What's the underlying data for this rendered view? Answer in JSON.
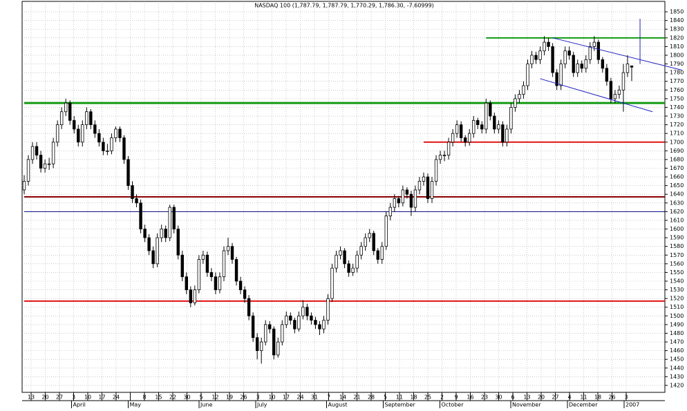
{
  "chart_data": {
    "type": "candlestick",
    "title": "NASDAQ 100 (1,787.79, 1,787.79, 1,770.29, 1,786.30, -7.60999)",
    "ylim": [
      1412,
      1862
    ],
    "yticks": [
      1420,
      1430,
      1440,
      1450,
      1460,
      1470,
      1480,
      1490,
      1500,
      1510,
      1520,
      1530,
      1540,
      1550,
      1560,
      1570,
      1580,
      1590,
      1600,
      1610,
      1620,
      1630,
      1640,
      1650,
      1660,
      1670,
      1680,
      1690,
      1700,
      1710,
      1720,
      1730,
      1740,
      1750,
      1760,
      1770,
      1780,
      1790,
      1800,
      1810,
      1820,
      1830,
      1840,
      1850
    ],
    "grid": true,
    "week_labels": [
      "13",
      "20",
      "27",
      "3",
      "10",
      "17",
      "24",
      null,
      "8",
      "15",
      "22",
      "30",
      "5",
      "12",
      "19",
      "26",
      "3",
      "10",
      "17",
      "24",
      "31",
      "7",
      "14",
      "21",
      "28",
      "5",
      "11",
      "18",
      "25",
      "2",
      "9",
      "16",
      "23",
      "30",
      "6",
      "13",
      "20",
      "27",
      "4",
      "11",
      "18",
      "26",
      "3"
    ],
    "month_labels": [
      null,
      null,
      null,
      "April",
      null,
      null,
      null,
      "May",
      null,
      null,
      null,
      null,
      "June",
      null,
      null,
      null,
      "July",
      null,
      null,
      null,
      null,
      "August",
      null,
      null,
      null,
      "September",
      null,
      null,
      null,
      "October",
      null,
      null,
      null,
      null,
      "November",
      null,
      null,
      null,
      "December",
      null,
      null,
      null,
      "2007"
    ],
    "ohlc": [
      [
        1645,
        1662,
        1640,
        1655
      ],
      [
        1655,
        1685,
        1650,
        1680
      ],
      [
        1680,
        1700,
        1675,
        1695
      ],
      [
        1695,
        1700,
        1680,
        1685
      ],
      [
        1685,
        1690,
        1665,
        1670
      ],
      [
        1670,
        1680,
        1665,
        1675
      ],
      [
        1675,
        1682,
        1668,
        1675
      ],
      [
        1675,
        1705,
        1670,
        1700
      ],
      [
        1700,
        1725,
        1695,
        1720
      ],
      [
        1720,
        1740,
        1715,
        1735
      ],
      [
        1735,
        1750,
        1730,
        1745
      ],
      [
        1745,
        1748,
        1720,
        1725
      ],
      [
        1725,
        1730,
        1710,
        1715
      ],
      [
        1715,
        1720,
        1695,
        1700
      ],
      [
        1700,
        1725,
        1695,
        1720
      ],
      [
        1720,
        1740,
        1715,
        1735
      ],
      [
        1735,
        1738,
        1715,
        1720
      ],
      [
        1720,
        1725,
        1705,
        1710
      ],
      [
        1710,
        1715,
        1695,
        1700
      ],
      [
        1700,
        1705,
        1685,
        1690
      ],
      [
        1690,
        1698,
        1685,
        1690
      ],
      [
        1690,
        1710,
        1686,
        1705
      ],
      [
        1705,
        1718,
        1700,
        1715
      ],
      [
        1715,
        1718,
        1700,
        1705
      ],
      [
        1705,
        1708,
        1675,
        1680
      ],
      [
        1680,
        1684,
        1645,
        1650
      ],
      [
        1650,
        1655,
        1630,
        1635
      ],
      [
        1635,
        1640,
        1625,
        1630
      ],
      [
        1630,
        1634,
        1595,
        1600
      ],
      [
        1600,
        1605,
        1585,
        1590
      ],
      [
        1590,
        1594,
        1570,
        1575
      ],
      [
        1575,
        1580,
        1555,
        1560
      ],
      [
        1560,
        1595,
        1556,
        1590
      ],
      [
        1590,
        1605,
        1585,
        1600
      ],
      [
        1600,
        1604,
        1585,
        1590
      ],
      [
        1590,
        1628,
        1586,
        1625
      ],
      [
        1625,
        1628,
        1595,
        1600
      ],
      [
        1600,
        1604,
        1565,
        1570
      ],
      [
        1570,
        1575,
        1540,
        1545
      ],
      [
        1545,
        1550,
        1525,
        1530
      ],
      [
        1530,
        1534,
        1510,
        1515
      ],
      [
        1515,
        1535,
        1512,
        1530
      ],
      [
        1530,
        1570,
        1526,
        1565
      ],
      [
        1565,
        1575,
        1560,
        1570
      ],
      [
        1570,
        1574,
        1545,
        1550
      ],
      [
        1550,
        1555,
        1540,
        1545
      ],
      [
        1545,
        1550,
        1525,
        1530
      ],
      [
        1530,
        1550,
        1526,
        1545
      ],
      [
        1545,
        1580,
        1540,
        1575
      ],
      [
        1575,
        1590,
        1570,
        1580
      ],
      [
        1580,
        1584,
        1560,
        1565
      ],
      [
        1565,
        1568,
        1535,
        1540
      ],
      [
        1540,
        1545,
        1525,
        1530
      ],
      [
        1530,
        1534,
        1515,
        1520
      ],
      [
        1520,
        1524,
        1495,
        1500
      ],
      [
        1500,
        1504,
        1470,
        1475
      ],
      [
        1475,
        1480,
        1450,
        1460
      ],
      [
        1460,
        1475,
        1445,
        1470
      ],
      [
        1470,
        1495,
        1466,
        1490
      ],
      [
        1490,
        1494,
        1480,
        1485
      ],
      [
        1485,
        1488,
        1450,
        1455
      ],
      [
        1455,
        1475,
        1452,
        1470
      ],
      [
        1470,
        1495,
        1466,
        1490
      ],
      [
        1490,
        1505,
        1486,
        1500
      ],
      [
        1500,
        1504,
        1490,
        1495
      ],
      [
        1495,
        1498,
        1480,
        1485
      ],
      [
        1485,
        1505,
        1482,
        1500
      ],
      [
        1500,
        1518,
        1496,
        1510
      ],
      [
        1510,
        1514,
        1495,
        1500
      ],
      [
        1500,
        1504,
        1490,
        1495
      ],
      [
        1495,
        1499,
        1485,
        1490
      ],
      [
        1490,
        1494,
        1478,
        1485
      ],
      [
        1485,
        1500,
        1480,
        1495
      ],
      [
        1495,
        1525,
        1490,
        1520
      ],
      [
        1520,
        1560,
        1516,
        1555
      ],
      [
        1555,
        1575,
        1550,
        1570
      ],
      [
        1570,
        1580,
        1565,
        1575
      ],
      [
        1575,
        1578,
        1555,
        1560
      ],
      [
        1560,
        1564,
        1545,
        1550
      ],
      [
        1550,
        1560,
        1546,
        1555
      ],
      [
        1555,
        1575,
        1550,
        1570
      ],
      [
        1570,
        1585,
        1565,
        1580
      ],
      [
        1580,
        1595,
        1575,
        1590
      ],
      [
        1590,
        1600,
        1585,
        1595
      ],
      [
        1595,
        1598,
        1570,
        1575
      ],
      [
        1575,
        1578,
        1560,
        1565
      ],
      [
        1565,
        1585,
        1560,
        1580
      ],
      [
        1580,
        1620,
        1576,
        1615
      ],
      [
        1615,
        1630,
        1610,
        1625
      ],
      [
        1625,
        1640,
        1620,
        1635
      ],
      [
        1635,
        1638,
        1625,
        1630
      ],
      [
        1630,
        1650,
        1626,
        1645
      ],
      [
        1645,
        1648,
        1635,
        1640
      ],
      [
        1640,
        1644,
        1615,
        1625
      ],
      [
        1625,
        1650,
        1620,
        1645
      ],
      [
        1645,
        1660,
        1640,
        1655
      ],
      [
        1655,
        1665,
        1650,
        1660
      ],
      [
        1660,
        1664,
        1630,
        1635
      ],
      [
        1635,
        1660,
        1630,
        1655
      ],
      [
        1655,
        1685,
        1650,
        1680
      ],
      [
        1680,
        1690,
        1675,
        1685
      ],
      [
        1685,
        1690,
        1678,
        1685
      ],
      [
        1685,
        1705,
        1680,
        1700
      ],
      [
        1700,
        1715,
        1695,
        1710
      ],
      [
        1710,
        1725,
        1705,
        1720
      ],
      [
        1720,
        1724,
        1700,
        1705
      ],
      [
        1705,
        1708,
        1695,
        1700
      ],
      [
        1700,
        1715,
        1696,
        1710
      ],
      [
        1710,
        1730,
        1705,
        1725
      ],
      [
        1725,
        1728,
        1715,
        1720
      ],
      [
        1720,
        1724,
        1710,
        1715
      ],
      [
        1715,
        1750,
        1710,
        1745
      ],
      [
        1745,
        1748,
        1725,
        1730
      ],
      [
        1730,
        1734,
        1710,
        1715
      ],
      [
        1715,
        1725,
        1710,
        1720
      ],
      [
        1720,
        1724,
        1695,
        1700
      ],
      [
        1700,
        1720,
        1695,
        1715
      ],
      [
        1715,
        1745,
        1710,
        1740
      ],
      [
        1740,
        1755,
        1735,
        1750
      ],
      [
        1750,
        1760,
        1745,
        1755
      ],
      [
        1755,
        1770,
        1750,
        1765
      ],
      [
        1765,
        1795,
        1760,
        1790
      ],
      [
        1790,
        1805,
        1785,
        1800
      ],
      [
        1800,
        1804,
        1790,
        1795
      ],
      [
        1795,
        1810,
        1790,
        1805
      ],
      [
        1805,
        1822,
        1800,
        1815
      ],
      [
        1815,
        1820,
        1805,
        1810
      ],
      [
        1810,
        1814,
        1775,
        1780
      ],
      [
        1780,
        1784,
        1760,
        1765
      ],
      [
        1765,
        1795,
        1760,
        1790
      ],
      [
        1790,
        1810,
        1785,
        1805
      ],
      [
        1805,
        1810,
        1795,
        1800
      ],
      [
        1800,
        1804,
        1775,
        1780
      ],
      [
        1780,
        1795,
        1775,
        1790
      ],
      [
        1790,
        1794,
        1780,
        1785
      ],
      [
        1785,
        1800,
        1780,
        1795
      ],
      [
        1795,
        1815,
        1790,
        1810
      ],
      [
        1810,
        1822,
        1805,
        1815
      ],
      [
        1815,
        1818,
        1790,
        1795
      ],
      [
        1795,
        1798,
        1780,
        1785
      ],
      [
        1785,
        1790,
        1765,
        1770
      ],
      [
        1770,
        1774,
        1745,
        1750
      ],
      [
        1750,
        1760,
        1745,
        1755
      ],
      [
        1755,
        1765,
        1750,
        1760
      ],
      [
        1760,
        1790,
        1735,
        1780
      ],
      [
        1780,
        1800,
        1775,
        1790
      ],
      [
        1787.79,
        1787.79,
        1770.29,
        1786.3
      ]
    ],
    "levels": [
      {
        "value": 1745,
        "color": "#109a10",
        "width": 3,
        "start": 0
      },
      {
        "value": 1820,
        "color": "#109a10",
        "width": 2,
        "start": 111
      },
      {
        "value": 1700,
        "color": "#e01010",
        "width": 2,
        "start": 96
      },
      {
        "value": 1637,
        "color": "#8b0000",
        "width": 2,
        "start": 0
      },
      {
        "value": 1620,
        "color": "#000080",
        "width": 1,
        "start": 0
      },
      {
        "value": 1517,
        "color": "#e01010",
        "width": 2,
        "start": 0
      }
    ],
    "trendlines": [
      {
        "color": "#2020c0",
        "points": [
          [
            127,
            1820
          ],
          [
            158,
            1783
          ]
        ]
      },
      {
        "color": "#2020c0",
        "points": [
          [
            124,
            1773
          ],
          [
            151,
            1735
          ]
        ]
      },
      {
        "color": "#2020c0",
        "points": [
          [
            148,
            1842
          ],
          [
            148,
            1790
          ]
        ]
      }
    ]
  }
}
